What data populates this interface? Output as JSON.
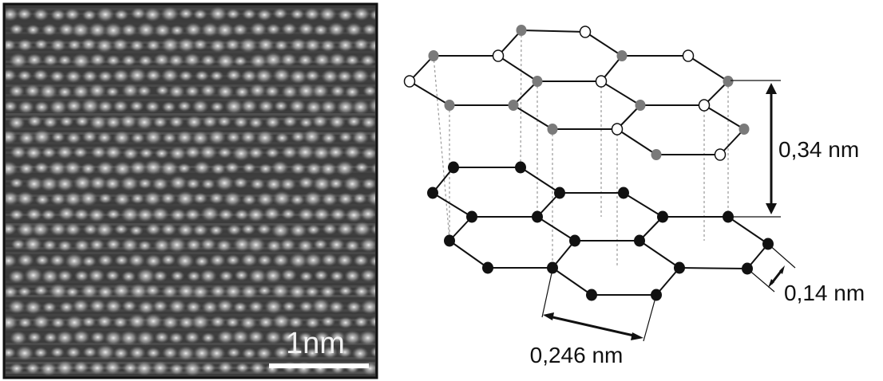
{
  "stm_image": {
    "scale_bar_label": "1nm"
  },
  "diagram": {
    "interlayer_distance_label": "0,34 nm",
    "bond_length_label": "0,14 nm",
    "lattice_constant_label": "0,246 nm",
    "colors": {
      "bottom_layer_atom": "#111111",
      "top_layer_atom_a": "#7a7a7a",
      "top_layer_atom_b": "#ffffff",
      "bond": "#111111",
      "projection_line": "#9a9a9a"
    }
  }
}
